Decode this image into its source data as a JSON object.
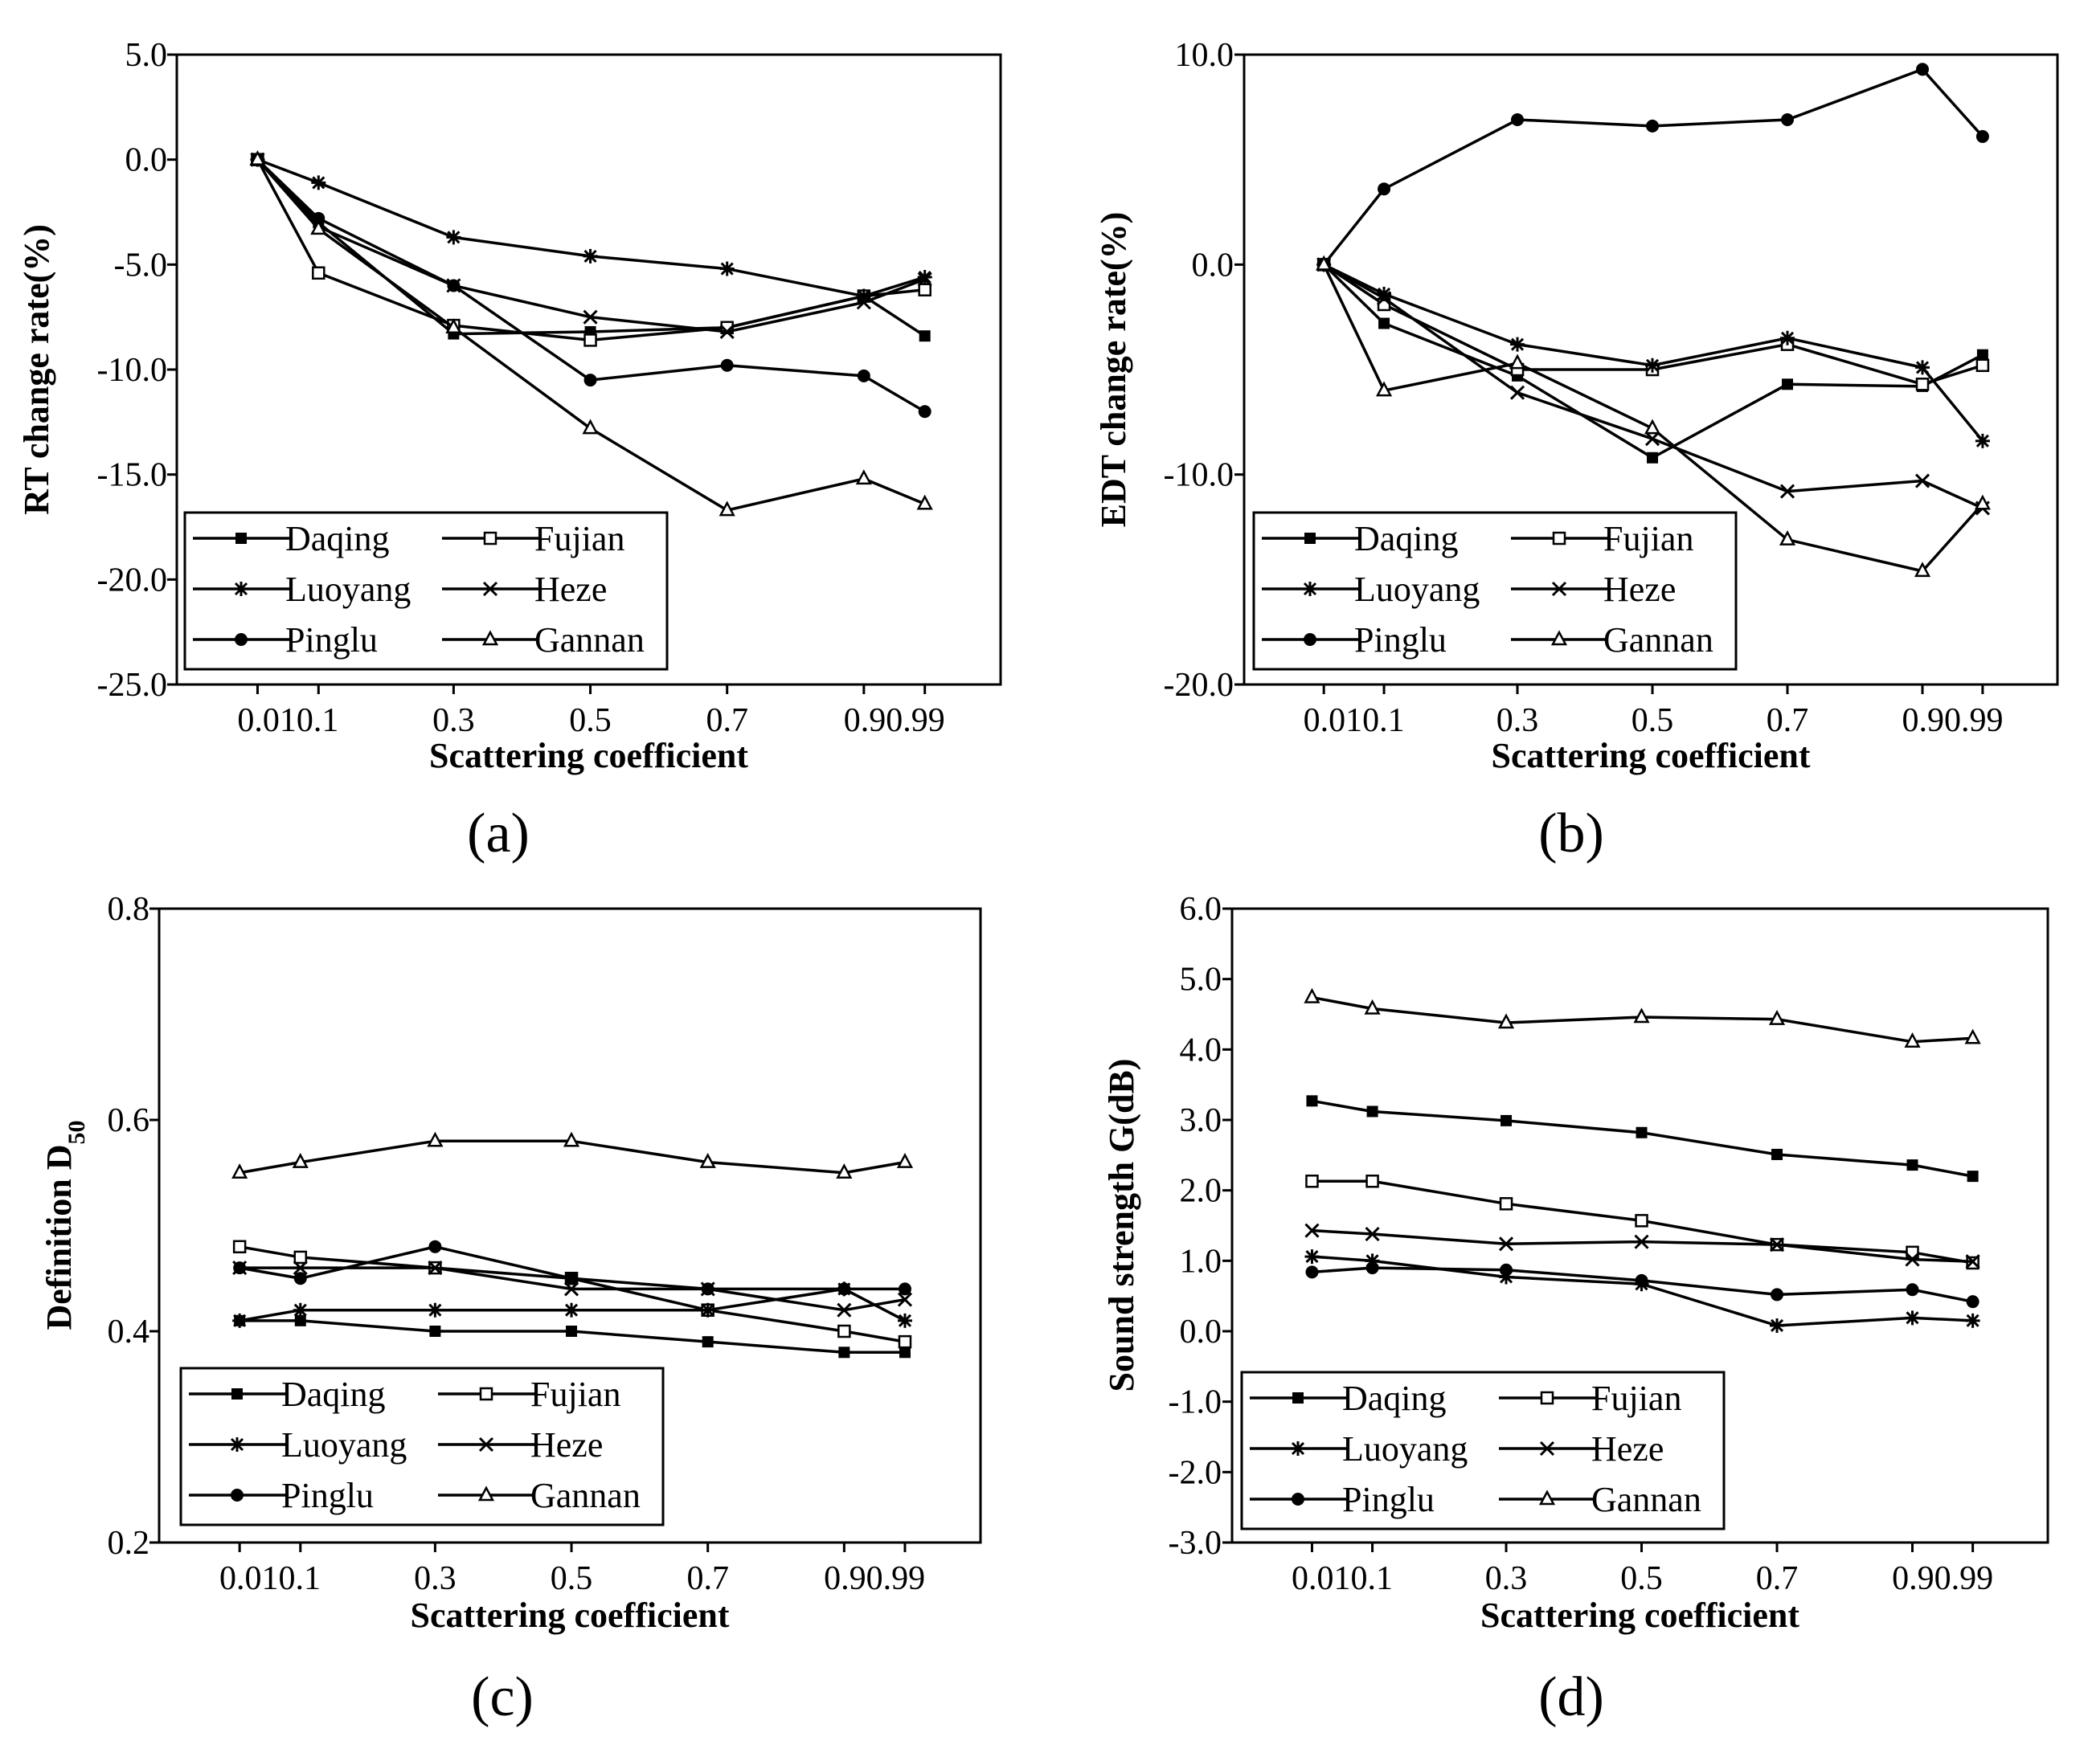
{
  "chart_data": [
    {
      "type": "line",
      "panel_label": "(a)",
      "title": "",
      "xlabel": "Scattering coefficient",
      "ylabel": "RT change rate(%)",
      "x": [
        0.01,
        0.1,
        0.3,
        0.5,
        0.7,
        0.9,
        0.99
      ],
      "x_tick_labels": [
        "0.010.1",
        "0.3",
        "0.5",
        "0.7",
        "0.90.99"
      ],
      "ylim": [
        -25.0,
        5.0
      ],
      "y_tick_labels": [
        "5.0",
        "0.0",
        "-5.0",
        "-10.0",
        "-15.0",
        "-20.0",
        "-25.0"
      ],
      "legend_position": "bottom-left",
      "series": [
        {
          "name": "Daqing",
          "marker": "square-filled",
          "values": [
            0,
            -3.0,
            -8.3,
            -8.2,
            -8.0,
            -6.5,
            -8.4
          ]
        },
        {
          "name": "Fujian",
          "marker": "square-open",
          "values": [
            0,
            -5.4,
            -7.9,
            -8.6,
            -8.0,
            -6.5,
            -6.2
          ]
        },
        {
          "name": "Luoyang",
          "marker": "asterisk",
          "values": [
            0,
            -1.1,
            -3.7,
            -4.6,
            -5.2,
            -6.5,
            -5.6
          ]
        },
        {
          "name": "Heze",
          "marker": "x",
          "values": [
            0,
            -3.2,
            -6.0,
            -7.5,
            -8.2,
            -6.8,
            -5.7
          ]
        },
        {
          "name": "Pinglu",
          "marker": "circle-filled",
          "values": [
            0,
            -2.8,
            -6.0,
            -10.5,
            -9.8,
            -10.3,
            -12.0
          ]
        },
        {
          "name": "Gannan",
          "marker": "triangle-open",
          "values": [
            0,
            -3.3,
            -8.0,
            -12.8,
            -16.7,
            -15.2,
            -16.4
          ]
        }
      ]
    },
    {
      "type": "line",
      "panel_label": "(b)",
      "title": "",
      "xlabel": "Scattering coefficient",
      "ylabel": "EDT change rate(%)",
      "x": [
        0.01,
        0.1,
        0.3,
        0.5,
        0.7,
        0.9,
        0.99
      ],
      "x_tick_labels": [
        "0.010.1",
        "0.3",
        "0.5",
        "0.7",
        "0.90.99"
      ],
      "ylim": [
        -20.0,
        10.0
      ],
      "y_tick_labels": [
        "10.0",
        "0.0",
        "-10.0",
        "-20.0"
      ],
      "legend_position": "bottom-left",
      "series": [
        {
          "name": "Daqing",
          "marker": "square-filled",
          "values": [
            0,
            -2.8,
            -5.3,
            -9.2,
            -5.7,
            -5.8,
            -4.3
          ]
        },
        {
          "name": "Fujian",
          "marker": "square-open",
          "values": [
            0,
            -1.9,
            -5.0,
            -5.0,
            -3.8,
            -5.7,
            -4.8
          ]
        },
        {
          "name": "Luoyang",
          "marker": "asterisk",
          "values": [
            0,
            -1.4,
            -3.8,
            -4.8,
            -3.5,
            -4.9,
            -8.4
          ]
        },
        {
          "name": "Heze",
          "marker": "x",
          "values": [
            0,
            -1.6,
            -6.1,
            -8.3,
            -10.8,
            -10.3,
            -11.6
          ]
        },
        {
          "name": "Pinglu",
          "marker": "circle-filled",
          "values": [
            0,
            3.6,
            6.9,
            6.6,
            6.9,
            9.3,
            6.1
          ]
        },
        {
          "name": "Gannan",
          "marker": "triangle-open",
          "values": [
            0,
            -6.0,
            -4.7,
            -7.8,
            -13.1,
            -14.6,
            -11.4
          ]
        }
      ]
    },
    {
      "type": "line",
      "panel_label": "(c)",
      "title": "",
      "xlabel": "Scattering coefficient",
      "ylabel": "Definition D",
      "ylabel_subscript": "50",
      "x": [
        0.01,
        0.1,
        0.3,
        0.5,
        0.7,
        0.9,
        0.99
      ],
      "x_tick_labels": [
        "0.010.1",
        "0.3",
        "0.5",
        "0.7",
        "0.90.99"
      ],
      "ylim": [
        0.2,
        0.8
      ],
      "y_tick_labels": [
        "0.8",
        "0.6",
        "0.4",
        "0.2"
      ],
      "legend_position": "bottom-left",
      "series": [
        {
          "name": "Daqing",
          "marker": "square-filled",
          "values": [
            0.41,
            0.41,
            0.4,
            0.4,
            0.39,
            0.38,
            0.38
          ]
        },
        {
          "name": "Fujian",
          "marker": "square-open",
          "values": [
            0.48,
            0.47,
            0.46,
            0.45,
            0.42,
            0.4,
            0.39
          ]
        },
        {
          "name": "Luoyang",
          "marker": "asterisk",
          "values": [
            0.41,
            0.42,
            0.42,
            0.42,
            0.42,
            0.44,
            0.41
          ]
        },
        {
          "name": "Heze",
          "marker": "x",
          "values": [
            0.46,
            0.46,
            0.46,
            0.44,
            0.44,
            0.42,
            0.43
          ]
        },
        {
          "name": "Pinglu",
          "marker": "circle-filled",
          "values": [
            0.46,
            0.45,
            0.48,
            0.45,
            0.44,
            0.44,
            0.44
          ]
        },
        {
          "name": "Gannan",
          "marker": "triangle-open",
          "values": [
            0.55,
            0.56,
            0.58,
            0.58,
            0.56,
            0.55,
            0.56
          ]
        }
      ]
    },
    {
      "type": "line",
      "panel_label": "(d)",
      "title": "",
      "xlabel": "Scattering coefficient",
      "ylabel": "Sound strength G(dB)",
      "x": [
        0.01,
        0.1,
        0.3,
        0.5,
        0.7,
        0.9,
        0.99
      ],
      "x_tick_labels": [
        "0.010.1",
        "0.3",
        "0.5",
        "0.7",
        "0.90.99"
      ],
      "ylim": [
        -3.0,
        6.0
      ],
      "y_tick_labels": [
        "6.0",
        "5.0",
        "4.0",
        "3.0",
        "2.0",
        "1.0",
        "0.0",
        "-1.0",
        "-2.0",
        "-3.0"
      ],
      "legend_position": "bottom-left",
      "series": [
        {
          "name": "Daqing",
          "marker": "square-filled",
          "values": [
            3.27,
            3.12,
            2.99,
            2.82,
            2.51,
            2.36,
            2.2
          ]
        },
        {
          "name": "Fujian",
          "marker": "square-open",
          "values": [
            2.13,
            2.13,
            1.81,
            1.57,
            1.23,
            1.12,
            0.97
          ]
        },
        {
          "name": "Luoyang",
          "marker": "asterisk",
          "values": [
            1.06,
            1.0,
            0.77,
            0.67,
            0.08,
            0.19,
            0.15
          ]
        },
        {
          "name": "Heze",
          "marker": "x",
          "values": [
            1.43,
            1.38,
            1.24,
            1.27,
            1.23,
            1.02,
            0.99
          ]
        },
        {
          "name": "Pinglu",
          "marker": "circle-filled",
          "values": [
            0.84,
            0.9,
            0.87,
            0.72,
            0.52,
            0.59,
            0.42
          ]
        },
        {
          "name": "Gannan",
          "marker": "triangle-open",
          "values": [
            4.74,
            4.58,
            4.38,
            4.46,
            4.43,
            4.11,
            4.16
          ]
        }
      ]
    }
  ]
}
